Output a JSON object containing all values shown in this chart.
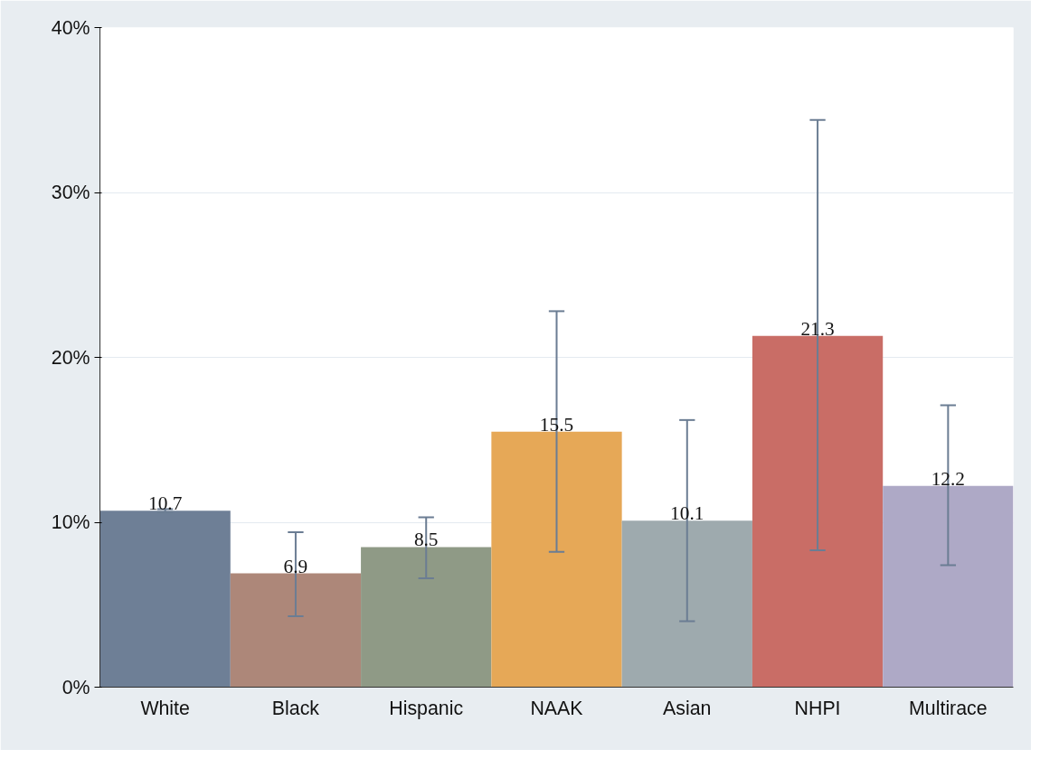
{
  "chart_data": {
    "type": "bar",
    "categories": [
      "White",
      "Black",
      "Hispanic",
      "NAAK",
      "Asian",
      "NHPI",
      "Multirace"
    ],
    "values": [
      10.7,
      6.9,
      8.5,
      15.5,
      10.1,
      21.3,
      12.2
    ],
    "colors": [
      "#6e7f96",
      "#ad8779",
      "#8f9a86",
      "#e6a857",
      "#9eaaae",
      "#c96d66",
      "#aea9c6"
    ],
    "errors": [
      [
        10.6,
        10.8
      ],
      [
        4.3,
        9.4
      ],
      [
        6.6,
        10.3
      ],
      [
        8.2,
        22.8
      ],
      [
        4.0,
        16.2
      ],
      [
        8.3,
        34.4
      ],
      [
        7.4,
        17.1
      ]
    ],
    "data_labels": true,
    "ylim": [
      0,
      40
    ],
    "yticks": [
      {
        "value": 0,
        "label": "0%"
      },
      {
        "value": 10,
        "label": "10%"
      },
      {
        "value": 20,
        "label": "20%"
      },
      {
        "value": 30,
        "label": "30%"
      },
      {
        "value": 40,
        "label": "40%"
      }
    ],
    "grid": "y"
  }
}
